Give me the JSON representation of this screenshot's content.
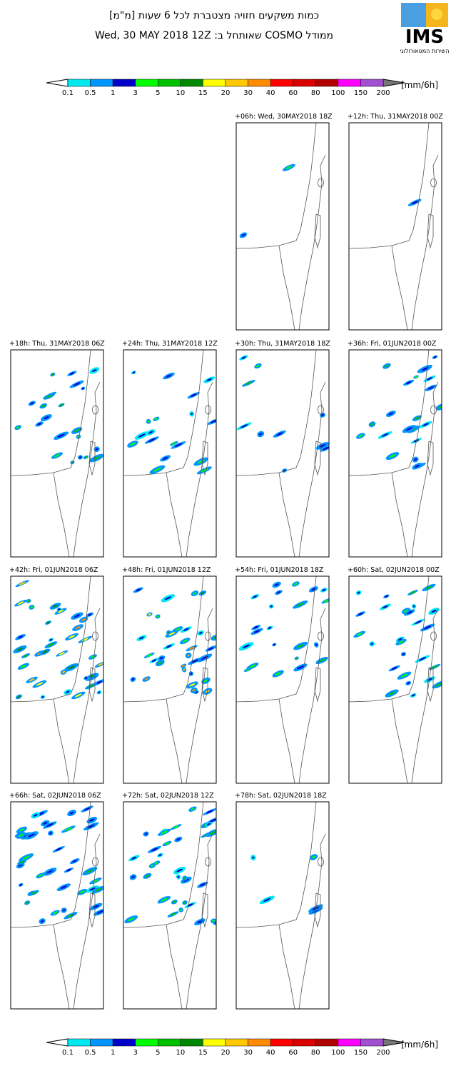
{
  "header": {
    "title": "כמות משקעים חזויה מצטברת לכל 6 שעות [מ\"מ]",
    "subtitle": "ממודל COSMO שאותחל ב: Wed, 30 MAY 2018 12Z"
  },
  "logo": {
    "name": "IMS",
    "caption": "השירות המטאורולוגי"
  },
  "legend": {
    "levels": [
      0.1,
      0.5,
      1,
      3,
      5,
      10,
      15,
      20,
      30,
      40,
      60,
      80,
      100,
      150,
      200
    ],
    "colors": [
      "#00e8f0",
      "#0096ff",
      "#0000c8",
      "#00ff00",
      "#00c000",
      "#008800",
      "#ffff00",
      "#ffc800",
      "#ff8c00",
      "#ff0000",
      "#d80000",
      "#b00000",
      "#ff00ff",
      "#a050d0"
    ],
    "units": "[mm/6h]"
  },
  "panels": [
    "+06h: Wed, 30MAY2018 18Z",
    "+12h: Thu, 31MAY2018 00Z",
    "+18h: Thu, 31MAY2018 06Z",
    "+24h: Thu, 31MAY2018 12Z",
    "+30h: Thu, 31MAY2018 18Z",
    "+36h: Fri, 01JUN2018 00Z",
    "+42h: Fri, 01JUN2018 06Z",
    "+48h: Fri, 01JUN2018 12Z",
    "+54h: Fri, 01JUN2018 18Z",
    "+60h: Sat, 02JUN2018 00Z",
    "+66h: Sat, 02JUN2018 06Z",
    "+72h: Sat, 02JUN2018 12Z",
    "+78h: Sat, 02JUN2018 18Z"
  ]
}
